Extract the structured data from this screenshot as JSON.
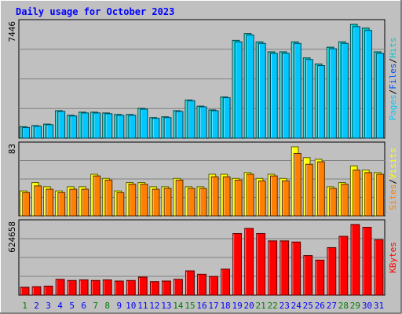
{
  "chart_data": {
    "type": "bar",
    "title": "Daily usage for October 2023",
    "categories": [
      "1",
      "2",
      "3",
      "4",
      "5",
      "6",
      "7",
      "8",
      "9",
      "10",
      "11",
      "12",
      "13",
      "14",
      "15",
      "16",
      "17",
      "18",
      "19",
      "20",
      "21",
      "22",
      "23",
      "24",
      "25",
      "26",
      "27",
      "28",
      "29",
      "30",
      "31"
    ],
    "weekend_days": [
      "1",
      "7",
      "8",
      "14",
      "15",
      "21",
      "22",
      "28",
      "29"
    ],
    "panels": [
      {
        "name": "hits-files-pages",
        "ymax_label": "7446",
        "ymax": 7446,
        "side_label": [
          "Pages",
          "Files",
          "Hits"
        ],
        "series": [
          {
            "name": "Hits",
            "color": "#00c8c8",
            "values": [
              750,
              820,
              920,
              1800,
              1500,
              1700,
              1700,
              1650,
              1550,
              1550,
              1950,
              1350,
              1400,
              1800,
              2500,
              2100,
              1850,
              2700,
              6400,
              6850,
              6300,
              5650,
              5650,
              6300,
              5250,
              4850,
              5950,
              6300,
              7446,
              7200,
              5650
            ]
          },
          {
            "name": "Files",
            "color": "#0050ff",
            "values": [
              0,
              0,
              0,
              0,
              0,
              0,
              0,
              0,
              0,
              0,
              0,
              0,
              0,
              0,
              0,
              0,
              0,
              0,
              0,
              0,
              0,
              0,
              0,
              0,
              0,
              0,
              0,
              0,
              0,
              0,
              0
            ]
          },
          {
            "name": "Pages",
            "color": "#00c8ff",
            "values": [
              700,
              780,
              880,
              1750,
              1450,
              1650,
              1650,
              1600,
              1500,
              1500,
              1900,
              1300,
              1350,
              1750,
              2450,
              2050,
              1800,
              2650,
              6300,
              6750,
              6200,
              5550,
              5550,
              6200,
              5150,
              4750,
              5850,
              6200,
              7300,
              7050,
              5550
            ]
          }
        ]
      },
      {
        "name": "visits-sites",
        "ymax_label": "83",
        "ymax": 83,
        "side_label": [
          "Sites",
          "Visits"
        ],
        "series": [
          {
            "name": "Visits",
            "color": "#ffff00",
            "values": [
              30,
              40,
              35,
              30,
              35,
              35,
              50,
              45,
              30,
              40,
              40,
              35,
              35,
              45,
              35,
              35,
              50,
              50,
              45,
              52,
              45,
              50,
              45,
              83,
              70,
              68,
              35,
              40,
              60,
              55,
              52
            ]
          },
          {
            "name": "Sites",
            "color": "#ff8000",
            "values": [
              28,
              36,
              32,
              28,
              32,
              32,
              48,
              43,
              28,
              38,
              38,
              32,
              33,
              43,
              33,
              33,
              47,
              47,
              43,
              50,
              42,
              48,
              42,
              75,
              62,
              65,
              33,
              38,
              55,
              52,
              50
            ]
          }
        ]
      },
      {
        "name": "kbytes",
        "ymax_label": "624658",
        "ymax": 624658,
        "side_label": [
          "KBytes"
        ],
        "series": [
          {
            "name": "KBytes",
            "color": "#ff0000",
            "values": [
              70000,
              75000,
              80000,
              140000,
              130000,
              135000,
              130000,
              135000,
              125000,
              130000,
              160000,
              120000,
              125000,
              140000,
              215000,
              185000,
              165000,
              230000,
              545000,
              590000,
              545000,
              480000,
              480000,
              470000,
              350000,
              310000,
              420000,
              520000,
              624658,
              600000,
              490000
            ]
          }
        ]
      }
    ],
    "colors": {
      "background": "#c0c0c0",
      "plot_background": "#c0c0c0",
      "grid": "#808080",
      "title": "#0000ff",
      "weekday_label": "#0000ff",
      "weekend_label": "#008000",
      "axis_label": "#000000"
    }
  }
}
